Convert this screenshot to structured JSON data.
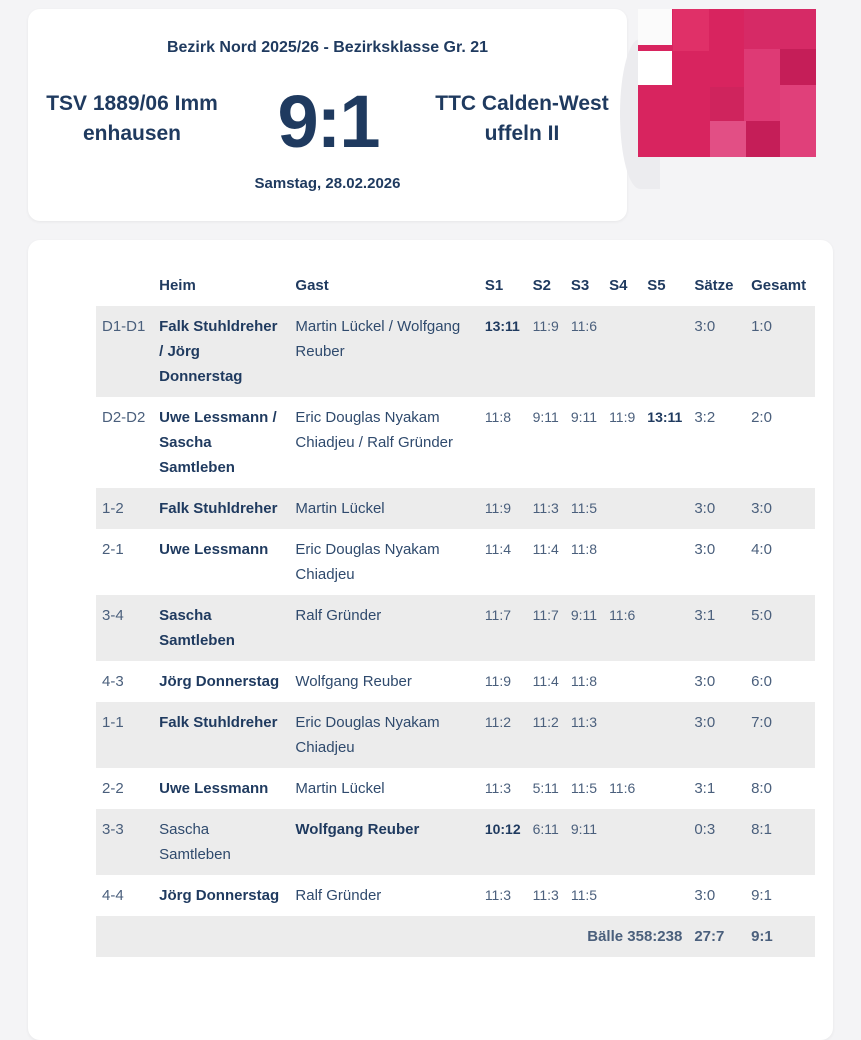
{
  "match": {
    "league": "Bezirk Nord 2025/26 - Bezirksklasse Gr. 21",
    "home_team": "TSV 1889/06 Immenhausen",
    "away_team": "TTC Calden-Westuffeln II",
    "score": "9:1",
    "date": "Samstag, 28.02.2026"
  },
  "colors": {
    "logo_primary": "#d8245f",
    "text_primary": "#1f3a5f"
  },
  "table": {
    "headers": {
      "code": "",
      "home": "Heim",
      "guest": "Gast",
      "s1": "S1",
      "s2": "S2",
      "s3": "S3",
      "s4": "S4",
      "s5": "S5",
      "saetze": "Sätze",
      "total": "Gesamt"
    },
    "rows": [
      {
        "code": "D1-D1",
        "home": "Falk Stuhldreher / Jörg Donnerstag",
        "guest": "Martin Lückel / Wolfgang Reuber",
        "winner": "home",
        "sets": [
          {
            "v": "13:11",
            "b": true
          },
          {
            "v": "11:9",
            "b": false
          },
          {
            "v": "11:6",
            "b": false
          },
          {
            "v": "",
            "b": false
          },
          {
            "v": "",
            "b": false
          }
        ],
        "saetze": "3:0",
        "total": "1:0"
      },
      {
        "code": "D2-D2",
        "home": "Uwe Lessmann / Sascha Samtleben",
        "guest": "Eric Douglas Nyakam Chiadjeu / Ralf Gründer",
        "winner": "home",
        "sets": [
          {
            "v": "11:8",
            "b": false
          },
          {
            "v": "9:11",
            "b": false
          },
          {
            "v": "9:11",
            "b": false
          },
          {
            "v": "11:9",
            "b": false
          },
          {
            "v": "13:11",
            "b": true
          }
        ],
        "saetze": "3:2",
        "total": "2:0"
      },
      {
        "code": "1-2",
        "home": "Falk Stuhldreher",
        "guest": "Martin Lückel",
        "winner": "home",
        "sets": [
          {
            "v": "11:9",
            "b": false
          },
          {
            "v": "11:3",
            "b": false
          },
          {
            "v": "11:5",
            "b": false
          },
          {
            "v": "",
            "b": false
          },
          {
            "v": "",
            "b": false
          }
        ],
        "saetze": "3:0",
        "total": "3:0"
      },
      {
        "code": "2-1",
        "home": "Uwe Lessmann",
        "guest": "Eric Douglas Nyakam Chiadjeu",
        "winner": "home",
        "sets": [
          {
            "v": "11:4",
            "b": false
          },
          {
            "v": "11:4",
            "b": false
          },
          {
            "v": "11:8",
            "b": false
          },
          {
            "v": "",
            "b": false
          },
          {
            "v": "",
            "b": false
          }
        ],
        "saetze": "3:0",
        "total": "4:0"
      },
      {
        "code": "3-4",
        "home": "Sascha Samtleben",
        "guest": "Ralf Gründer",
        "winner": "home",
        "sets": [
          {
            "v": "11:7",
            "b": false
          },
          {
            "v": "11:7",
            "b": false
          },
          {
            "v": "9:11",
            "b": false
          },
          {
            "v": "11:6",
            "b": false
          },
          {
            "v": "",
            "b": false
          }
        ],
        "saetze": "3:1",
        "total": "5:0"
      },
      {
        "code": "4-3",
        "home": "Jörg Donnerstag",
        "guest": "Wolfgang Reuber",
        "winner": "home",
        "sets": [
          {
            "v": "11:9",
            "b": false
          },
          {
            "v": "11:4",
            "b": false
          },
          {
            "v": "11:8",
            "b": false
          },
          {
            "v": "",
            "b": false
          },
          {
            "v": "",
            "b": false
          }
        ],
        "saetze": "3:0",
        "total": "6:0"
      },
      {
        "code": "1-1",
        "home": "Falk Stuhldreher",
        "guest": "Eric Douglas Nyakam Chiadjeu",
        "winner": "home",
        "sets": [
          {
            "v": "11:2",
            "b": false
          },
          {
            "v": "11:2",
            "b": false
          },
          {
            "v": "11:3",
            "b": false
          },
          {
            "v": "",
            "b": false
          },
          {
            "v": "",
            "b": false
          }
        ],
        "saetze": "3:0",
        "total": "7:0"
      },
      {
        "code": "2-2",
        "home": "Uwe Lessmann",
        "guest": "Martin Lückel",
        "winner": "home",
        "sets": [
          {
            "v": "11:3",
            "b": false
          },
          {
            "v": "5:11",
            "b": false
          },
          {
            "v": "11:5",
            "b": false
          },
          {
            "v": "11:6",
            "b": false
          },
          {
            "v": "",
            "b": false
          }
        ],
        "saetze": "3:1",
        "total": "8:0"
      },
      {
        "code": "3-3",
        "home": "Sascha Samtleben",
        "guest": "Wolfgang Reuber",
        "winner": "guest",
        "sets": [
          {
            "v": "10:12",
            "b": true
          },
          {
            "v": "6:11",
            "b": false
          },
          {
            "v": "9:11",
            "b": false
          },
          {
            "v": "",
            "b": false
          },
          {
            "v": "",
            "b": false
          }
        ],
        "saetze": "0:3",
        "total": "8:1"
      },
      {
        "code": "4-4",
        "home": "Jörg Donnerstag",
        "guest": "Ralf Gründer",
        "winner": "home",
        "sets": [
          {
            "v": "11:3",
            "b": false
          },
          {
            "v": "11:3",
            "b": false
          },
          {
            "v": "11:5",
            "b": false
          },
          {
            "v": "",
            "b": false
          },
          {
            "v": "",
            "b": false
          }
        ],
        "saetze": "3:0",
        "total": "9:1"
      }
    ],
    "footer": {
      "baelle": "Bälle 358:238",
      "saetze": "27:7",
      "total": "9:1"
    }
  }
}
